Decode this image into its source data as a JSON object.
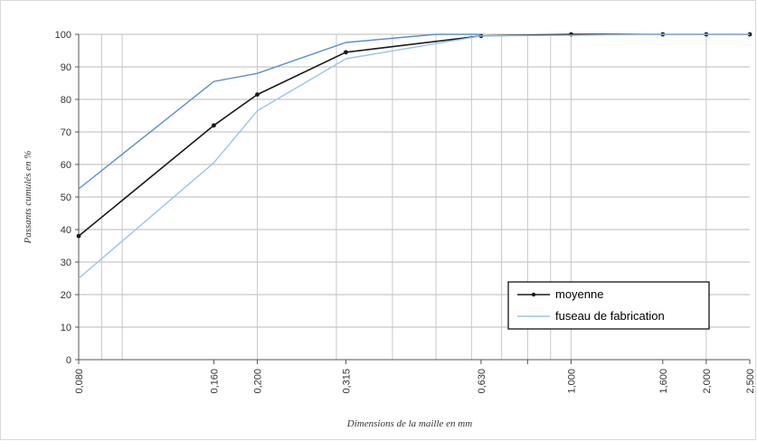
{
  "chart_data": {
    "type": "line",
    "xlabel": "Dimensions de la maille en mm",
    "ylabel": "Passants cumulés en %",
    "x_scale": "log",
    "xlim": [
      0.08,
      2.5
    ],
    "ylim": [
      0,
      100
    ],
    "y_ticks": [
      0,
      10,
      20,
      30,
      40,
      50,
      60,
      70,
      80,
      90,
      100
    ],
    "x_ticks": [
      {
        "value": 0.08,
        "label": "0,080"
      },
      {
        "value": 0.16,
        "label": "0,160"
      },
      {
        "value": 0.2,
        "label": "0,200"
      },
      {
        "value": 0.315,
        "label": "0,315"
      },
      {
        "value": 0.63,
        "label": "0,630"
      },
      {
        "value": 1.0,
        "label": "1,000"
      },
      {
        "value": 1.6,
        "label": "1,600"
      },
      {
        "value": 2.0,
        "label": "2,000"
      },
      {
        "value": 2.5,
        "label": "2,500"
      }
    ],
    "grid": true,
    "legend_position": "bottom-right",
    "series": [
      {
        "name": "moyenne",
        "color": "#1a1a1a",
        "markers": true,
        "x": [
          0.08,
          0.16,
          0.2,
          0.315,
          0.63,
          1.0,
          1.6,
          2.0,
          2.5
        ],
        "y": [
          38,
          72,
          81.5,
          94.5,
          99.5,
          100,
          100,
          100,
          100
        ]
      },
      {
        "name": "fuseau de fabrication",
        "color": "#5b8fd0",
        "markers": false,
        "x": [
          0.08,
          0.16,
          0.2,
          0.315,
          0.5,
          0.63
        ],
        "y": [
          52.5,
          85.5,
          88,
          97.5,
          100,
          100
        ]
      },
      {
        "name": "",
        "color": "#9cc3ec",
        "markers": false,
        "x": [
          0.08,
          0.16,
          0.2,
          0.315,
          0.63,
          1.0,
          1.6,
          2.5
        ],
        "y": [
          25,
          60.5,
          76.5,
          92.5,
          99.5,
          99.7,
          100,
          100
        ]
      }
    ]
  }
}
